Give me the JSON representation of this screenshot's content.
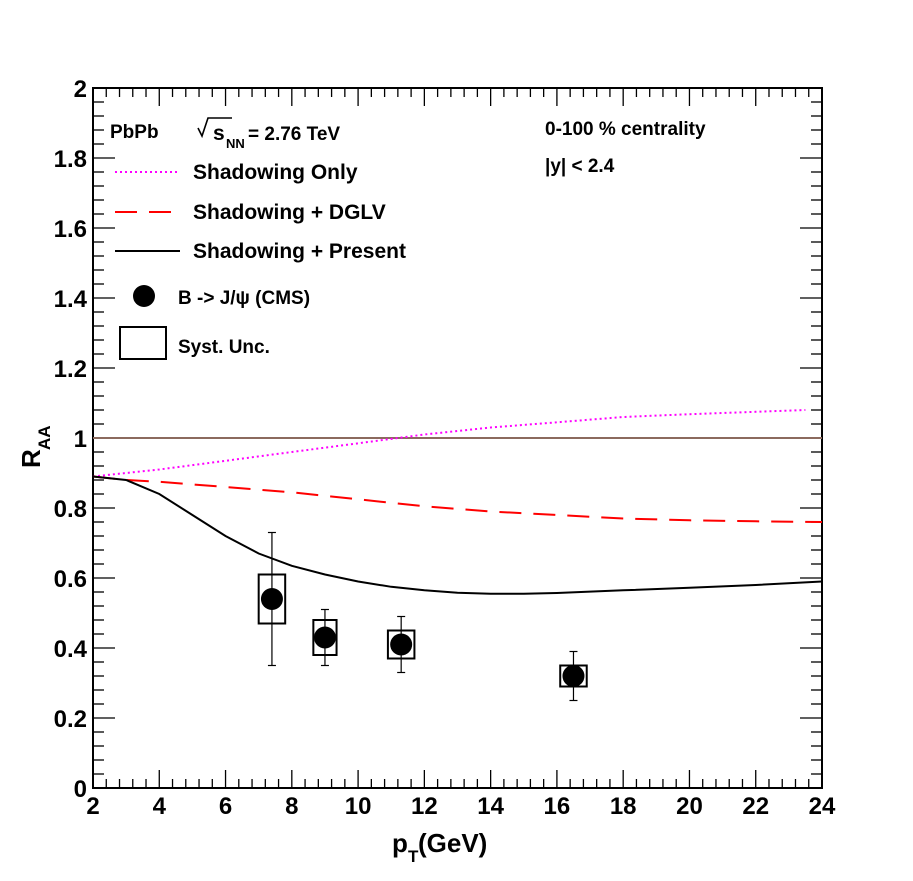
{
  "chart_data": {
    "type": "line",
    "title": "",
    "xlabel": "p",
    "xlabel_sub": "T",
    "xlabel_unit": " (GeV)",
    "ylabel": "R",
    "ylabel_sub": "AA",
    "xlim": [
      2,
      24
    ],
    "ylim": [
      0,
      2
    ],
    "x_ticks": [
      2,
      4,
      6,
      8,
      10,
      12,
      14,
      16,
      18,
      20,
      22,
      24
    ],
    "y_ticks": [
      0,
      0.2,
      0.4,
      0.6,
      0.8,
      1,
      1.2,
      1.4,
      1.6,
      1.8,
      2
    ],
    "y_tick_labels": [
      "0",
      "0.2",
      "0.4",
      "0.6",
      "0.8",
      "1",
      "1.2",
      "1.4",
      "1.6",
      "1.8",
      "2"
    ],
    "x_tick_labels": [
      "2",
      "4",
      "6",
      "8",
      "10",
      "12",
      "14",
      "16",
      "18",
      "20",
      "22",
      "24"
    ],
    "reference_line": {
      "y": 1,
      "color": "#8b6a5e"
    },
    "annotations": {
      "system": "PbPb",
      "energy_prefix": "s",
      "energy_sub": "NN",
      "energy_value": " = 2.76 TeV",
      "centrality": "0-100 % centrality",
      "rapidity": "|y| < 2.4"
    },
    "series": [
      {
        "name": "Shadowing Only",
        "style": "dotted",
        "color": "#ff00ff",
        "x": [
          2,
          4,
          6,
          8,
          10,
          12,
          14,
          16,
          18,
          20,
          22,
          23.5
        ],
        "y": [
          0.89,
          0.91,
          0.935,
          0.96,
          0.985,
          1.01,
          1.03,
          1.045,
          1.06,
          1.068,
          1.075,
          1.08
        ]
      },
      {
        "name": "Shadowing + DGLV",
        "style": "dashed",
        "color": "#ff0000",
        "x": [
          2,
          3,
          4,
          6,
          8,
          10,
          12,
          14,
          16,
          18,
          20,
          22,
          24
        ],
        "y": [
          0.89,
          0.88,
          0.875,
          0.86,
          0.845,
          0.825,
          0.805,
          0.79,
          0.78,
          0.77,
          0.765,
          0.762,
          0.76
        ]
      },
      {
        "name": "Shadowing + Present",
        "style": "solid",
        "color": "#000000",
        "x": [
          2,
          3,
          4,
          5,
          6,
          7,
          8,
          9,
          10,
          11,
          12,
          13,
          14,
          15,
          16,
          18,
          20,
          22,
          24
        ],
        "y": [
          0.89,
          0.88,
          0.84,
          0.78,
          0.72,
          0.67,
          0.635,
          0.61,
          0.59,
          0.575,
          0.565,
          0.558,
          0.555,
          0.555,
          0.557,
          0.565,
          0.572,
          0.58,
          0.59
        ]
      }
    ],
    "data_points": {
      "name": "B -> J/ψ (CMS)",
      "x": [
        7.4,
        9.0,
        11.3,
        16.5
      ],
      "y": [
        0.54,
        0.43,
        0.41,
        0.32
      ],
      "stat_lo": [
        0.35,
        0.35,
        0.33,
        0.25
      ],
      "stat_hi": [
        0.73,
        0.51,
        0.49,
        0.39
      ],
      "syst_lo": [
        0.47,
        0.38,
        0.37,
        0.29
      ],
      "syst_hi": [
        0.61,
        0.48,
        0.45,
        0.35
      ],
      "syst_half_width": [
        0.4,
        0.35,
        0.4,
        0.4
      ]
    },
    "legend": {
      "entries": [
        {
          "label": "Shadowing Only",
          "style": "dotted",
          "color": "#ff00ff"
        },
        {
          "label": "Shadowing + DGLV",
          "style": "dashed",
          "color": "#ff0000"
        },
        {
          "label": "Shadowing + Present",
          "style": "solid",
          "color": "#000000"
        },
        {
          "label": "B -> J/ψ (CMS)",
          "style": "marker"
        },
        {
          "label": "Syst. Unc.",
          "style": "box"
        }
      ]
    }
  }
}
